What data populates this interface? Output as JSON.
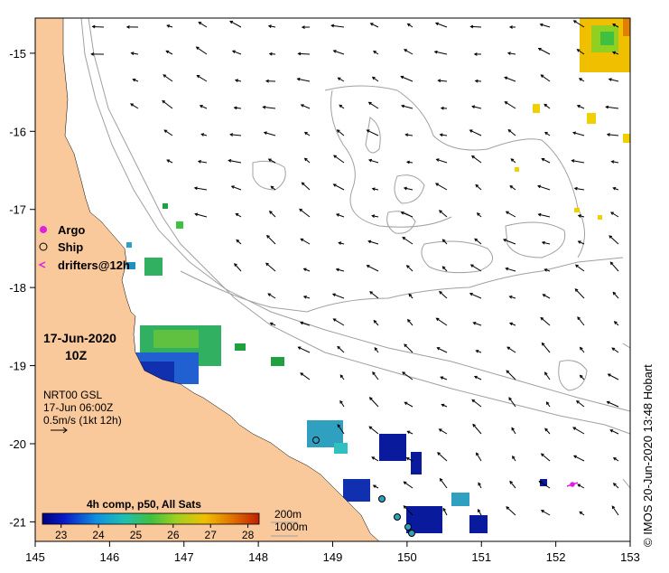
{
  "map": {
    "x_ticks": [
      "145",
      "146",
      "147",
      "148",
      "149",
      "150",
      "151",
      "152",
      "153"
    ],
    "y_ticks": [
      "-15",
      "-16",
      "-17",
      "-18",
      "-19",
      "-20",
      "-21"
    ],
    "x_range": [
      145,
      153
    ],
    "y_range": [
      -21.25,
      -14.55
    ]
  },
  "legend": {
    "argo": "Argo",
    "ship": "Ship",
    "drifters": "drifters@12h",
    "argo_color": "#e020e0",
    "drifter_color": "#e020e0"
  },
  "date": {
    "day": "17-Jun-2020",
    "hour": "10Z"
  },
  "current_info": {
    "source": "NRT00 GSL",
    "time": "17-Jun 06:00Z",
    "scale": "0.5m/s (1kt 12h)"
  },
  "colorbar": {
    "title": "4h comp, p50, All Sats",
    "ticks": [
      "23",
      "24",
      "25",
      "26",
      "27",
      "28"
    ],
    "range": [
      22.5,
      28.3
    ]
  },
  "depth_legend": {
    "line1": "200m",
    "line2": "1000m"
  },
  "credit": "© IMOS 20-Jun-2020 13:48 Hobart",
  "colors": {
    "land": "#f9c89b",
    "contour": "#a0a0a0",
    "sst_cool": "#0a1a9c",
    "sst_warm": "#f0c000"
  }
}
